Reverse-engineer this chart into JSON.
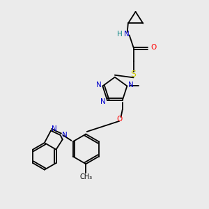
{
  "background_color": "#ebebeb",
  "figsize": [
    3.0,
    3.0
  ],
  "dpi": 100,
  "atom_colors": {
    "N": "#0000cc",
    "O": "#ff0000",
    "S": "#cccc00",
    "C": "#000000",
    "H": "#008080"
  },
  "lw": 1.3,
  "fs": 7.5
}
